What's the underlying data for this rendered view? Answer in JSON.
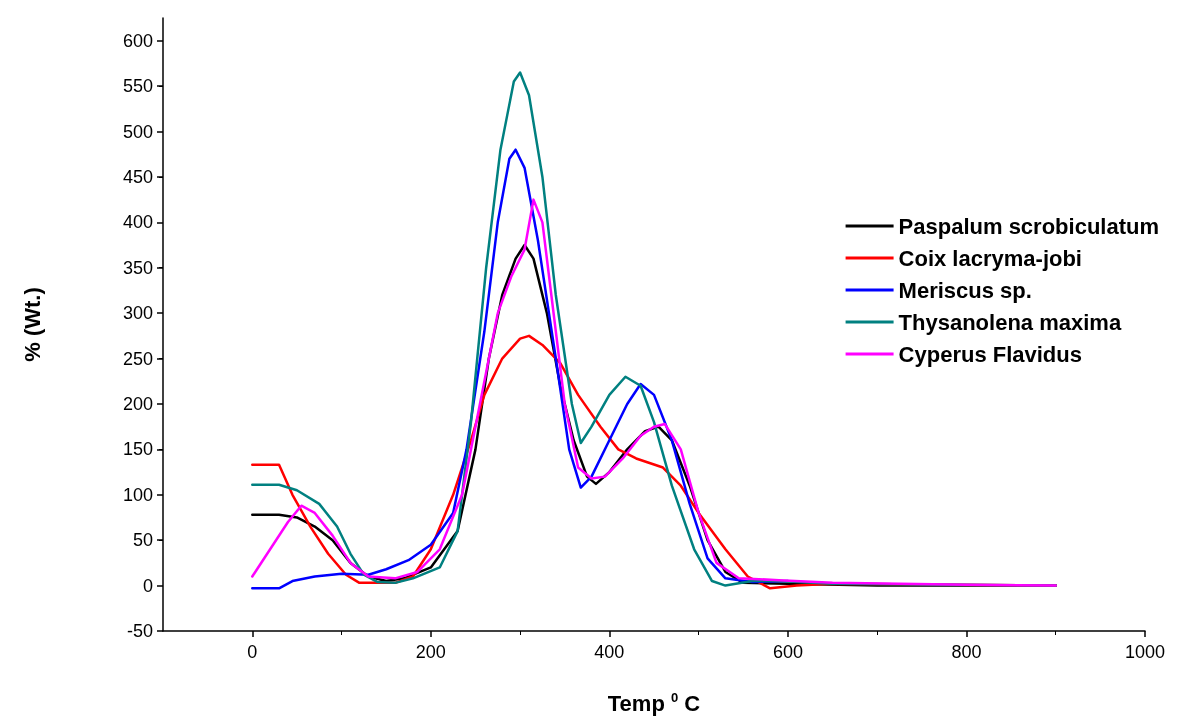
{
  "chart_data": {
    "type": "line",
    "xlabel": "Temp $^{0}$ C",
    "ylabel": "% (Wt.)",
    "xlim": [
      -100,
      1000
    ],
    "xticks": [
      0,
      200,
      400,
      600,
      800,
      1000
    ],
    "ylim": [
      -50,
      625
    ],
    "yticks": [
      -50,
      0,
      50,
      100,
      150,
      200,
      250,
      300,
      350,
      400,
      450,
      500,
      550,
      600
    ],
    "grid": false,
    "legend": "right",
    "marker": "none",
    "line_style": "solid",
    "series": [
      {
        "name": "Paspalum scrobiculatum",
        "color": "#000000",
        "x": [
          0,
          30,
          50,
          70,
          90,
          110,
          130,
          150,
          170,
          200,
          230,
          250,
          265,
          280,
          295,
          305,
          315,
          330,
          345,
          360,
          375,
          385,
          400,
          420,
          440,
          455,
          470,
          490,
          510,
          530,
          550,
          600,
          700,
          900
        ],
        "values": [
          78,
          78,
          75,
          65,
          50,
          25,
          10,
          5,
          8,
          20,
          60,
          150,
          250,
          320,
          360,
          375,
          360,
          300,
          220,
          160,
          120,
          112,
          125,
          150,
          170,
          175,
          160,
          110,
          50,
          15,
          3,
          2,
          0,
          0
        ]
      },
      {
        "name": "Coix lacryma-jobi",
        "color": "#ff0000",
        "x": [
          0,
          30,
          45,
          65,
          85,
          105,
          120,
          160,
          180,
          200,
          225,
          245,
          260,
          280,
          300,
          310,
          325,
          345,
          365,
          390,
          410,
          430,
          460,
          480,
          500,
          530,
          555,
          580,
          610,
          650,
          900
        ],
        "values": [
          133,
          133,
          100,
          65,
          35,
          12,
          3,
          3,
          10,
          40,
          100,
          160,
          210,
          250,
          272,
          275,
          265,
          245,
          210,
          175,
          150,
          140,
          130,
          110,
          80,
          40,
          10,
          -3,
          0,
          2,
          0
        ]
      },
      {
        "name": "Meriscus sp.",
        "color": "#0000ff",
        "x": [
          0,
          30,
          45,
          70,
          100,
          130,
          150,
          175,
          200,
          225,
          240,
          260,
          275,
          288,
          295,
          305,
          320,
          340,
          355,
          368,
          380,
          400,
          420,
          435,
          450,
          470,
          490,
          510,
          530,
          560,
          600
        ],
        "values": [
          -3,
          -3,
          5,
          10,
          13,
          12,
          18,
          28,
          45,
          80,
          150,
          280,
          400,
          470,
          480,
          460,
          380,
          250,
          150,
          108,
          120,
          160,
          200,
          222,
          210,
          160,
          90,
          30,
          8,
          4,
          5
        ]
      },
      {
        "name": "Thysanolena maxima",
        "color": "#008080",
        "x": [
          0,
          30,
          50,
          75,
          95,
          110,
          125,
          140,
          160,
          180,
          210,
          230,
          245,
          262,
          278,
          293,
          300,
          310,
          325,
          340,
          358,
          368,
          380,
          400,
          418,
          435,
          450,
          470,
          495,
          515,
          530,
          560,
          590,
          650,
          900
        ],
        "values": [
          111,
          111,
          105,
          90,
          65,
          35,
          12,
          4,
          3,
          8,
          20,
          60,
          180,
          350,
          480,
          555,
          565,
          540,
          450,
          320,
          200,
          157,
          175,
          210,
          230,
          220,
          180,
          110,
          40,
          5,
          0,
          5,
          5,
          2,
          0
        ]
      },
      {
        "name": "Cyperus Flavidus",
        "color": "#ff00ff",
        "x": [
          0,
          20,
          40,
          55,
          70,
          90,
          110,
          130,
          160,
          185,
          210,
          235,
          255,
          275,
          290,
          305,
          315,
          325,
          335,
          350,
          365,
          380,
          395,
          415,
          435,
          450,
          462,
          480,
          500,
          520,
          545,
          590,
          650,
          800,
          900
        ],
        "values": [
          10,
          40,
          70,
          88,
          80,
          55,
          25,
          10,
          8,
          15,
          40,
          100,
          200,
          300,
          340,
          370,
          425,
          400,
          320,
          200,
          130,
          118,
          120,
          140,
          165,
          175,
          178,
          150,
          80,
          25,
          8,
          6,
          3,
          1,
          0
        ]
      }
    ]
  }
}
